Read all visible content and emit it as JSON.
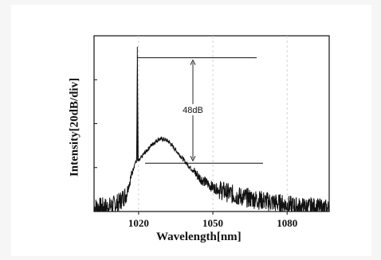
{
  "chart_data": {
    "type": "line",
    "xlabel": "Wavelength[nm]",
    "ylabel": "Intensity[20dB/div]",
    "xlim": [
      1002,
      1097
    ],
    "ylim": [
      -80,
      0
    ],
    "x_ticks": [
      1020,
      1050,
      1080
    ],
    "y_tick_count": 4,
    "grid": true,
    "series": [
      {
        "values_x": [
          1002,
          1008,
          1012,
          1015,
          1017,
          1018.5,
          1019.2,
          1019.5,
          1019.8,
          1020.2,
          1022,
          1025,
          1028,
          1030,
          1032,
          1035,
          1040,
          1045,
          1050,
          1055,
          1060,
          1065,
          1070,
          1075,
          1080,
          1085,
          1090,
          1097
        ],
        "values_y": [
          -78,
          -78,
          -76,
          -72,
          -64,
          -58,
          -57,
          -5,
          -57,
          -57,
          -54,
          -50,
          -47,
          -47,
          -48,
          -52,
          -59,
          -65,
          -69,
          -71,
          -73,
          -74,
          -75,
          -76,
          -77,
          -78,
          -78,
          -79
        ]
      }
    ],
    "annotations": [
      {
        "text": "48dB",
        "upper_level": -10,
        "lower_level": -58
      }
    ]
  }
}
